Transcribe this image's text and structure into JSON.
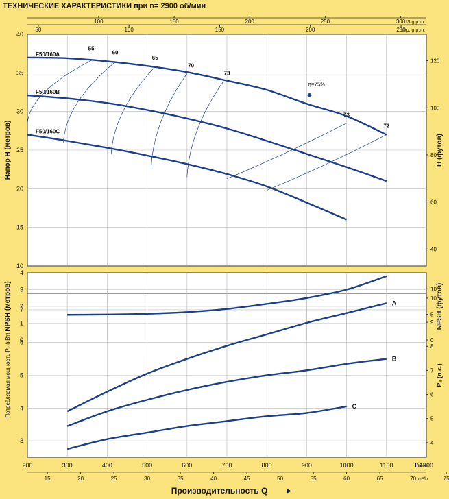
{
  "title": "ТЕХНИЧЕСКИЕ ХАРАКТЕРИСТИКИ при n= 2900 об/мин",
  "colors": {
    "background": "#FBE37E",
    "plot_bg": "#FFFFFF",
    "curve": "#1B3F8A",
    "grid": "#BBBBBB"
  },
  "top_axes": {
    "us": {
      "unit": "US g.p.m.",
      "ticks": [
        100,
        150,
        200,
        250,
        300
      ]
    },
    "imp": {
      "unit": "Imp. g.p.m.",
      "ticks": [
        50,
        100,
        150,
        200,
        250
      ]
    }
  },
  "bottom_axes": {
    "lmin": {
      "unit": "l/min",
      "ticks": [
        200,
        300,
        400,
        500,
        600,
        700,
        800,
        900,
        1000,
        1100,
        1200
      ]
    },
    "m3h": {
      "unit": "m³/h",
      "ticks": [
        15,
        20,
        25,
        30,
        35,
        40,
        45,
        50,
        55,
        60,
        65,
        70,
        75
      ]
    },
    "xlabel": "Производительность  Q"
  },
  "chart_data": [
    {
      "type": "line",
      "name": "head",
      "ylabel": "Напор  H  (метров)",
      "ylabel_right": "H  (футов)",
      "ylim": [
        10,
        40
      ],
      "y_ticks": [
        10,
        15,
        20,
        25,
        30,
        35,
        40
      ],
      "y_ticks_right": [
        40,
        60,
        80,
        100,
        120
      ],
      "series": [
        {
          "name": "F50/160A",
          "x": [
            200,
            300,
            400,
            500,
            600,
            700,
            800,
            900,
            1000,
            1100
          ],
          "y": [
            37,
            36.9,
            36.5,
            35.9,
            35.1,
            34,
            32.8,
            31,
            29.4,
            27
          ]
        },
        {
          "name": "F50/160B",
          "x": [
            200,
            300,
            400,
            500,
            600,
            700,
            800,
            900,
            1000,
            1100
          ],
          "y": [
            32.1,
            31.7,
            31.1,
            30.2,
            29.1,
            27.8,
            26.2,
            24.5,
            22.8,
            21
          ]
        },
        {
          "name": "F50/160C",
          "x": [
            200,
            300,
            400,
            500,
            600,
            700,
            800,
            900,
            1000
          ],
          "y": [
            27,
            26.2,
            25.3,
            24.3,
            23.2,
            21.9,
            20.3,
            18.2,
            16
          ]
        }
      ],
      "efficiency_labels": [
        "55",
        "60",
        "65",
        "70",
        "73",
        "η=75%",
        "73",
        "72"
      ]
    },
    {
      "type": "line",
      "name": "npsh",
      "ylabel": "NPSH  (метров)",
      "ylabel_right": "NPSH  (футов)",
      "ylim": [
        0,
        4
      ],
      "y_ticks": [
        0,
        1,
        2,
        3,
        4
      ],
      "y_ticks_right": [
        0,
        5,
        10
      ],
      "series": [
        {
          "x": [
            300,
            400,
            500,
            600,
            700,
            800,
            900,
            1000,
            1100
          ],
          "y": [
            1.5,
            1.52,
            1.56,
            1.66,
            1.85,
            2.15,
            2.5,
            3.0,
            3.8
          ]
        }
      ]
    },
    {
      "type": "line",
      "name": "power",
      "ylabel": "Потребляемая мощность  P₂ (кВт)",
      "ylabel_right": "P₂  (л.с.)",
      "ylim": [
        2.5,
        7.5
      ],
      "y_ticks": [
        3,
        4,
        5,
        6,
        7
      ],
      "y_ticks_right": [
        4,
        5,
        6,
        7,
        8,
        9,
        10
      ],
      "series": [
        {
          "name": "A",
          "x": [
            300,
            400,
            500,
            600,
            700,
            800,
            900,
            1000,
            1100
          ],
          "y": [
            3.9,
            4.5,
            5.05,
            5.5,
            5.9,
            6.25,
            6.6,
            6.9,
            7.2
          ]
        },
        {
          "name": "B",
          "x": [
            300,
            400,
            500,
            600,
            700,
            800,
            900,
            1000,
            1100
          ],
          "y": [
            3.45,
            3.9,
            4.25,
            4.55,
            4.8,
            5.0,
            5.15,
            5.35,
            5.5
          ]
        },
        {
          "name": "C",
          "x": [
            300,
            400,
            500,
            600,
            700,
            800,
            900,
            1000
          ],
          "y": [
            2.75,
            3.05,
            3.25,
            3.45,
            3.6,
            3.75,
            3.85,
            4.05
          ]
        }
      ]
    }
  ]
}
